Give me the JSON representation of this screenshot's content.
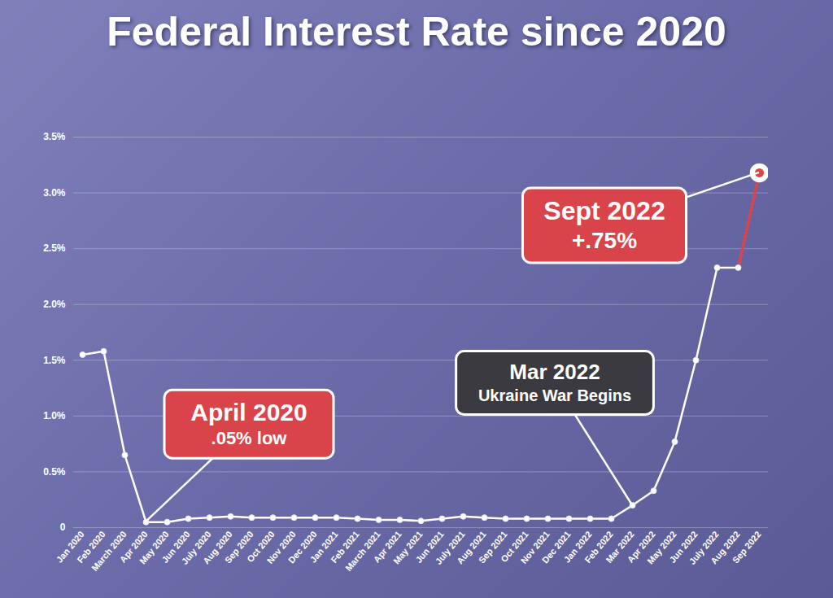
{
  "chart_data": {
    "type": "line",
    "title": "Federal Interest Rate since 2020",
    "categories": [
      "Jan 2020",
      "Feb 2020",
      "March 2020",
      "Apr 2020",
      "May 2020",
      "Jun 2020",
      "July 2020",
      "Aug 2020",
      "Sep 2020",
      "Oct 2020",
      "Nov 2020",
      "Dec 2020",
      "Jan 2021",
      "Feb 2021",
      "March 2021",
      "Apr 2021",
      "May 2021",
      "Jun 2021",
      "July 2021",
      "Aug 2021",
      "Sep 2021",
      "Oct 2021",
      "Nov 2021",
      "Dec 2021",
      "Jan 2022",
      "Feb 2022",
      "Mar 2022",
      "Apr 2022",
      "May 2022",
      "Jun 2022",
      "July 2022",
      "Aug 2022",
      "Sep 2022"
    ],
    "values": [
      1.55,
      1.58,
      0.65,
      0.05,
      0.05,
      0.08,
      0.09,
      0.1,
      0.09,
      0.09,
      0.09,
      0.09,
      0.09,
      0.08,
      0.07,
      0.07,
      0.06,
      0.08,
      0.1,
      0.09,
      0.08,
      0.08,
      0.08,
      0.08,
      0.08,
      0.08,
      0.2,
      0.33,
      0.77,
      1.5,
      2.33,
      2.33,
      3.18
    ],
    "color": "#ffffff",
    "marker": "circle",
    "ylim": [
      0,
      3.5
    ],
    "yticks": [
      0,
      {
        "value": 0.5,
        "label": "0.5%"
      },
      {
        "value": 1,
        "label": "1.0%"
      },
      {
        "value": 1.5,
        "label": "1.5%"
      },
      {
        "value": 2,
        "label": "2.0%"
      },
      {
        "value": 2.5,
        "label": "2.5%"
      },
      {
        "value": 3,
        "label": "3.0%"
      },
      {
        "value": 3.5,
        "label": "3.5%"
      }
    ],
    "grid": true,
    "annotations": [
      {
        "category": "Apr 2020",
        "text": [
          "April 2020",
          ".05% low"
        ],
        "color": "#d9434a"
      },
      {
        "category": "Mar 2022",
        "text": [
          "Mar 2022",
          "Ukraine War Begins"
        ],
        "color": "#3a3a40"
      },
      {
        "category": "Sep 2022",
        "text": [
          "Sept 2022",
          "+.75%"
        ],
        "color": "#d9434a"
      }
    ]
  }
}
